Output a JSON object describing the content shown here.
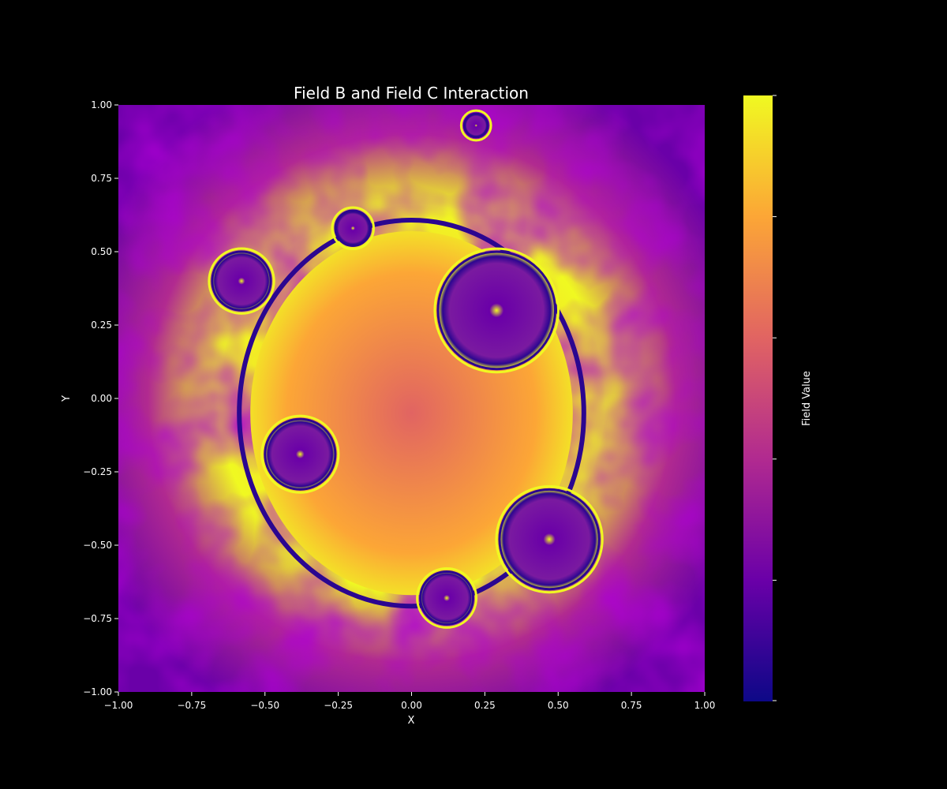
{
  "chart_data": {
    "type": "heatmap",
    "title": "Field B and Field C Interaction",
    "xlabel": "X",
    "ylabel": "Y",
    "colorbar_label": "Field Value",
    "colormap": "plasma",
    "colormap_stops": [
      "#0d0887",
      "#6a00a8",
      "#b12a90",
      "#e16462",
      "#fca636",
      "#f0f921"
    ],
    "xlim": [
      -1.0,
      1.0
    ],
    "ylim": [
      -1.0,
      1.0
    ],
    "x_ticks": [
      -1.0,
      -0.75,
      -0.5,
      -0.25,
      0.0,
      0.25,
      0.5,
      0.75,
      1.0
    ],
    "x_tick_labels": [
      "−1.00",
      "−0.75",
      "−0.50",
      "−0.25",
      "0.00",
      "0.25",
      "0.50",
      "0.75",
      "1.00"
    ],
    "y_ticks": [
      1.0,
      0.75,
      0.5,
      0.25,
      0.0,
      -0.25,
      -0.5,
      -0.75,
      -1.0
    ],
    "y_tick_labels": [
      "1.00",
      "0.75",
      "0.50",
      "0.25",
      "0.00",
      "−0.25",
      "−0.50",
      "−0.75",
      "−1.00"
    ],
    "colorbar_tick_count": 6,
    "features": [
      {
        "name": "central-blob",
        "x": 0.0,
        "y": -0.05,
        "rx": 0.55,
        "ry": 0.62,
        "value": 0.75
      },
      {
        "name": "ring-upper-right",
        "x": 0.29,
        "y": 0.3,
        "r": 0.2,
        "value": 0.15
      },
      {
        "name": "ring-upper-left",
        "x": -0.58,
        "y": 0.4,
        "r": 0.1,
        "value": 0.1
      },
      {
        "name": "ring-top",
        "x": -0.2,
        "y": 0.58,
        "r": 0.06,
        "value": 0.1
      },
      {
        "name": "ring-left",
        "x": -0.38,
        "y": -0.19,
        "r": 0.12,
        "value": 0.15
      },
      {
        "name": "ring-lower-right",
        "x": 0.47,
        "y": -0.48,
        "r": 0.17,
        "value": 0.2
      },
      {
        "name": "ring-bottom",
        "x": 0.12,
        "y": -0.68,
        "r": 0.09,
        "value": 0.2
      },
      {
        "name": "dark-spot-top",
        "x": 0.22,
        "y": 0.93,
        "r": 0.04,
        "value": 0.05
      }
    ]
  }
}
